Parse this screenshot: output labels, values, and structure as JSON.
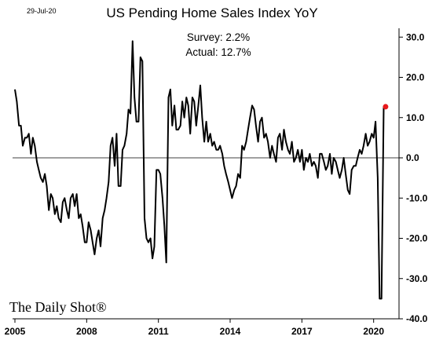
{
  "header": {
    "date": "29-Jul-20",
    "title": "US Pending Home Sales Index YoY"
  },
  "annotations": {
    "survey": "Survey: 2.2%",
    "actual": "Actual:  12.7%"
  },
  "watermark": "The Daily Shot®",
  "colors": {
    "line": "#000000",
    "latest_point": "#e8191c"
  },
  "chart_data": {
    "type": "line",
    "title": "US Pending Home Sales Index YoY",
    "xlabel": "",
    "ylabel": "",
    "xlim": [
      2005,
      2020.7
    ],
    "ylim": [
      -40,
      32
    ],
    "x_ticks": [
      2005,
      2008,
      2011,
      2014,
      2017,
      2020
    ],
    "x_tick_labels": [
      "2005",
      "2008",
      "2011",
      "2014",
      "2017",
      "2020"
    ],
    "y_ticks": [
      30,
      20,
      10,
      0,
      -10,
      -20,
      -30,
      -40
    ],
    "y_tick_labels": [
      "30.0",
      "20.0",
      "10.0",
      "0.0",
      "-10.0",
      "-20.0",
      "-30.0",
      "-40.0"
    ],
    "y_axis_side": "right",
    "zero_line": true,
    "grid": false,
    "legend": "none",
    "series": [
      {
        "x": [
          2005.0,
          2005.08,
          2005.17,
          2005.25,
          2005.33,
          2005.42,
          2005.5,
          2005.58,
          2005.67,
          2005.75,
          2005.83,
          2005.92,
          2006.0,
          2006.08,
          2006.17,
          2006.25,
          2006.33,
          2006.42,
          2006.5,
          2006.58,
          2006.67,
          2006.75,
          2006.83,
          2006.92,
          2007.0,
          2007.08,
          2007.17,
          2007.25,
          2007.33,
          2007.42,
          2007.5,
          2007.58,
          2007.67,
          2007.75,
          2007.83,
          2007.92,
          2008.0,
          2008.08,
          2008.17,
          2008.25,
          2008.33,
          2008.42,
          2008.5,
          2008.58,
          2008.67,
          2008.75,
          2008.83,
          2008.92,
          2009.0,
          2009.08,
          2009.17,
          2009.25,
          2009.33,
          2009.42,
          2009.5,
          2009.58,
          2009.67,
          2009.75,
          2009.83,
          2009.92,
          2010.0,
          2010.08,
          2010.17,
          2010.25,
          2010.33,
          2010.42,
          2010.5,
          2010.58,
          2010.67,
          2010.75,
          2010.83,
          2010.92,
          2011.0,
          2011.08,
          2011.17,
          2011.25,
          2011.33,
          2011.42,
          2011.5,
          2011.58,
          2011.67,
          2011.75,
          2011.83,
          2011.92,
          2012.0,
          2012.08,
          2012.17,
          2012.25,
          2012.33,
          2012.42,
          2012.5,
          2012.58,
          2012.67,
          2012.75,
          2012.83,
          2012.92,
          2013.0,
          2013.08,
          2013.17,
          2013.25,
          2013.33,
          2013.42,
          2013.5,
          2013.58,
          2013.67,
          2013.75,
          2013.83,
          2013.92,
          2014.0,
          2014.08,
          2014.17,
          2014.25,
          2014.33,
          2014.42,
          2014.5,
          2014.58,
          2014.67,
          2014.75,
          2014.83,
          2014.92,
          2015.0,
          2015.08,
          2015.17,
          2015.25,
          2015.33,
          2015.42,
          2015.5,
          2015.58,
          2015.67,
          2015.75,
          2015.83,
          2015.92,
          2016.0,
          2016.08,
          2016.17,
          2016.25,
          2016.33,
          2016.42,
          2016.5,
          2016.58,
          2016.67,
          2016.75,
          2016.83,
          2016.92,
          2017.0,
          2017.08,
          2017.17,
          2017.25,
          2017.33,
          2017.42,
          2017.5,
          2017.58,
          2017.67,
          2017.75,
          2017.83,
          2017.92,
          2018.0,
          2018.08,
          2018.17,
          2018.25,
          2018.33,
          2018.42,
          2018.5,
          2018.58,
          2018.67,
          2018.75,
          2018.83,
          2018.92,
          2019.0,
          2019.08,
          2019.17,
          2019.25,
          2019.33,
          2019.42,
          2019.5,
          2019.58,
          2019.67,
          2019.75,
          2019.83,
          2019.92,
          2020.0,
          2020.08,
          2020.17,
          2020.25,
          2020.33,
          2020.42,
          2020.5
        ],
        "y": [
          17,
          14,
          8,
          8,
          3,
          5,
          5,
          6,
          1,
          5,
          3,
          -1,
          -3,
          -5,
          -6,
          -4,
          -7,
          -13,
          -9,
          -10,
          -14,
          -12,
          -15,
          -16,
          -11,
          -10,
          -13,
          -15,
          -10,
          -9,
          -12,
          -9,
          -15,
          -14,
          -17,
          -21,
          -21,
          -16,
          -18,
          -21,
          -24,
          -20,
          -18,
          -22,
          -15,
          -13,
          -10,
          -6,
          3,
          5,
          -2,
          6,
          -7,
          -7,
          2,
          3,
          6,
          12,
          11,
          29,
          15,
          9,
          9,
          25,
          24,
          -15,
          -20,
          -21,
          -20,
          -25,
          -22,
          -3,
          -3,
          -4,
          -10,
          -17,
          -26,
          15,
          17,
          8,
          13,
          7,
          7,
          8,
          14,
          10,
          15,
          13,
          6,
          15,
          14,
          8,
          13,
          18,
          10,
          4,
          9,
          4,
          6,
          3,
          4,
          2,
          2,
          3,
          1,
          -2,
          -4,
          -6,
          -8,
          -10,
          -8,
          -7,
          -4,
          -5,
          3,
          2,
          4,
          7,
          10,
          13,
          12,
          8,
          4,
          9,
          10,
          5,
          6,
          4,
          0,
          3,
          1,
          -1,
          5,
          6,
          2,
          7,
          4,
          2,
          1,
          4,
          -1,
          0,
          2,
          -1,
          2,
          -3,
          0,
          -1,
          1,
          -2,
          -1,
          -2,
          -5,
          1,
          1,
          -1,
          -3,
          -2,
          1,
          -4,
          0,
          -1,
          -3,
          -5,
          -3,
          0,
          -4,
          -8,
          -9,
          -3,
          -2,
          -2,
          0,
          2,
          1,
          3,
          6,
          3,
          4,
          6,
          5,
          9,
          -5,
          -35,
          -35,
          12.7,
          12.7
        ]
      }
    ]
  }
}
